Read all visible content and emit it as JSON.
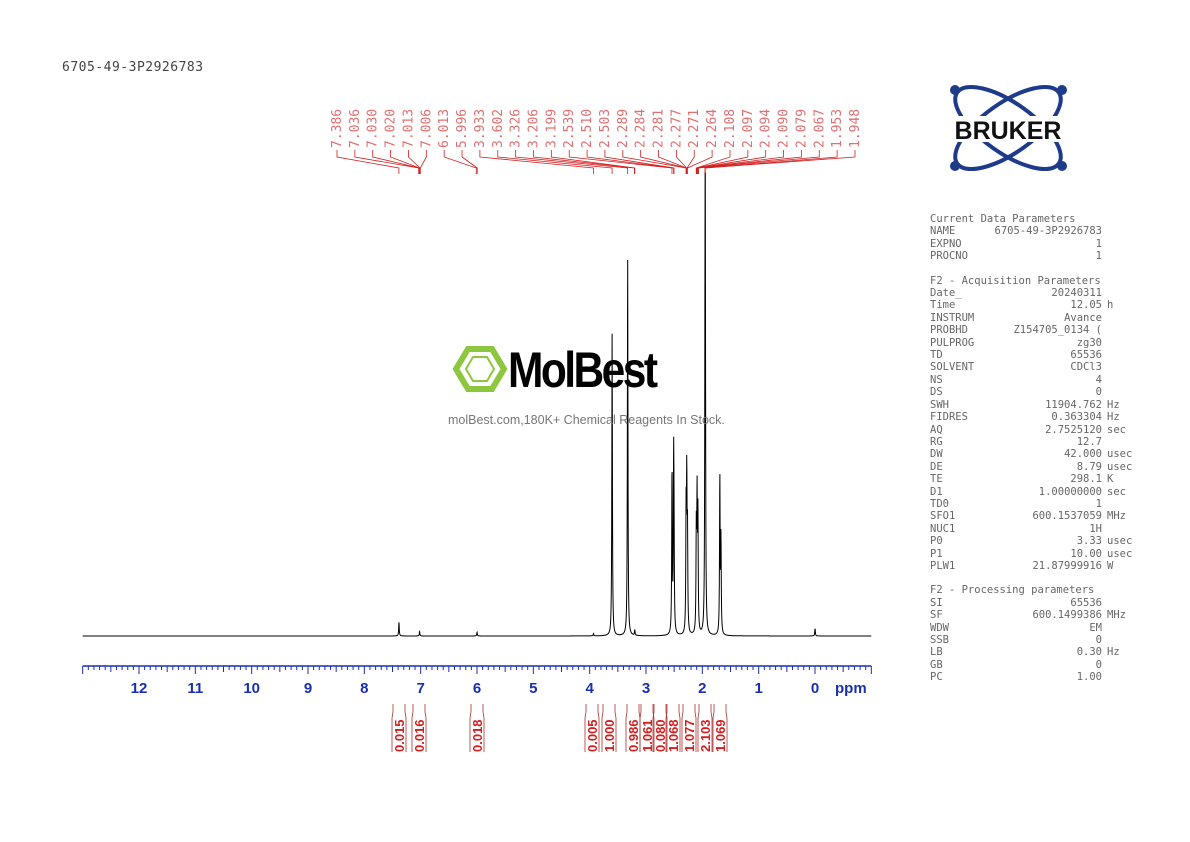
{
  "sample_name": "6705-49-3P2926783",
  "logo": {
    "text": "BRUKER"
  },
  "watermark": {
    "name": "MolBest",
    "tagline": "molBest.com,180K+ Chemical Reagents In Stock."
  },
  "colors": {
    "spectrum": "#000000",
    "labels": "#d22020",
    "axis": "#1a2fb0",
    "logo_blue": "#1e3a8a"
  },
  "chart_data": {
    "type": "line",
    "xlabel": "ppm",
    "xlim": [
      13.0,
      -1.0
    ],
    "x_reversed": true,
    "ticks": [
      "12",
      "11",
      "10",
      "9",
      "8",
      "7",
      "6",
      "5",
      "4",
      "3",
      "2",
      "1",
      "0"
    ],
    "peaks": [
      {
        "ppm": 7.386,
        "intensity": 3.7
      },
      {
        "ppm": 7.02,
        "intensity": 1.2
      },
      {
        "ppm": 6.0,
        "intensity": 1.0
      },
      {
        "ppm": 3.933,
        "intensity": 0.6
      },
      {
        "ppm": 3.602,
        "intensity": 80
      },
      {
        "ppm": 3.326,
        "intensity": 100
      },
      {
        "ppm": 3.2,
        "intensity": 1.5
      },
      {
        "ppm": 2.539,
        "intensity": 44
      },
      {
        "ppm": 2.51,
        "intensity": 42
      },
      {
        "ppm": 2.503,
        "intensity": 20
      },
      {
        "ppm": 2.289,
        "intensity": 30
      },
      {
        "ppm": 2.277,
        "intensity": 38
      },
      {
        "ppm": 2.264,
        "intensity": 25
      },
      {
        "ppm": 2.108,
        "intensity": 26
      },
      {
        "ppm": 2.094,
        "intensity": 34
      },
      {
        "ppm": 2.079,
        "intensity": 30
      },
      {
        "ppm": 1.953,
        "intensity": 60
      },
      {
        "ppm": 1.948,
        "intensity": 87
      },
      {
        "ppm": 1.69,
        "intensity": 42
      },
      {
        "ppm": 1.67,
        "intensity": 25
      },
      {
        "ppm": 0.0,
        "intensity": 2
      }
    ],
    "peak_labels": [
      "7.386",
      "7.036",
      "7.030",
      "7.020",
      "7.013",
      "7.006",
      "6.013",
      "5.996",
      "3.933",
      "3.602",
      "3.326",
      "3.206",
      "3.199",
      "2.539",
      "2.510",
      "2.503",
      "2.289",
      "2.284",
      "2.281",
      "2.277",
      "2.271",
      "2.264",
      "2.108",
      "2.097",
      "2.094",
      "2.090",
      "2.079",
      "2.067",
      "1.953",
      "1.948"
    ],
    "integrals": [
      {
        "ppm": 7.386,
        "value": "0.015"
      },
      {
        "ppm": 7.02,
        "value": "0.016"
      },
      {
        "ppm": 6.0,
        "value": "0.018"
      },
      {
        "ppm": 3.93,
        "value": "0.005"
      },
      {
        "ppm": 3.6,
        "value": "1.000"
      },
      {
        "ppm": 3.33,
        "value": "0.986"
      },
      {
        "ppm": 3.2,
        "value": "1.061"
      },
      {
        "ppm": 2.95,
        "value": "0.080"
      },
      {
        "ppm": 2.52,
        "value": "1.068"
      },
      {
        "ppm": 2.28,
        "value": "1.077"
      },
      {
        "ppm": 2.09,
        "value": "2.103"
      },
      {
        "ppm": 1.69,
        "value": "1.069"
      }
    ]
  },
  "parameters": [
    {
      "title": "Current Data Parameters",
      "rows": [
        [
          "NAME",
          "6705-49-3P2926783",
          ""
        ],
        [
          "EXPNO",
          "1",
          ""
        ],
        [
          "PROCNO",
          "1",
          ""
        ]
      ]
    },
    {
      "title": "F2 - Acquisition Parameters",
      "rows": [
        [
          "Date_",
          "20240311",
          ""
        ],
        [
          "Time",
          "12.05",
          "h"
        ],
        [
          "INSTRUM",
          "Avance",
          ""
        ],
        [
          "PROBHD",
          "Z154705_0134 (",
          ""
        ],
        [
          "PULPROG",
          "zg30",
          ""
        ],
        [
          "TD",
          "65536",
          ""
        ],
        [
          "SOLVENT",
          "CDCl3",
          ""
        ],
        [
          "NS",
          "4",
          ""
        ],
        [
          "DS",
          "0",
          ""
        ],
        [
          "SWH",
          "11904.762",
          "Hz"
        ],
        [
          "FIDRES",
          "0.363304",
          "Hz"
        ],
        [
          "AQ",
          "2.7525120",
          "sec"
        ],
        [
          "RG",
          "12.7",
          ""
        ],
        [
          "DW",
          "42.000",
          "usec"
        ],
        [
          "DE",
          "8.79",
          "usec"
        ],
        [
          "TE",
          "298.1",
          "K"
        ],
        [
          "D1",
          "1.00000000",
          "sec"
        ],
        [
          "TD0",
          "1",
          ""
        ],
        [
          "SFO1",
          "600.1537059",
          "MHz"
        ],
        [
          "NUC1",
          "1H",
          ""
        ],
        [
          "P0",
          "3.33",
          "usec"
        ],
        [
          "P1",
          "10.00",
          "usec"
        ],
        [
          "PLW1",
          "21.87999916",
          "W"
        ]
      ]
    },
    {
      "title": "F2 - Processing parameters",
      "rows": [
        [
          "SI",
          "65536",
          ""
        ],
        [
          "SF",
          "600.1499386",
          "MHz"
        ],
        [
          "WDW",
          "EM",
          ""
        ],
        [
          "SSB",
          "0",
          ""
        ],
        [
          "LB",
          "0.30",
          "Hz"
        ],
        [
          "GB",
          "0",
          ""
        ],
        [
          "PC",
          "1.00",
          ""
        ]
      ]
    }
  ]
}
